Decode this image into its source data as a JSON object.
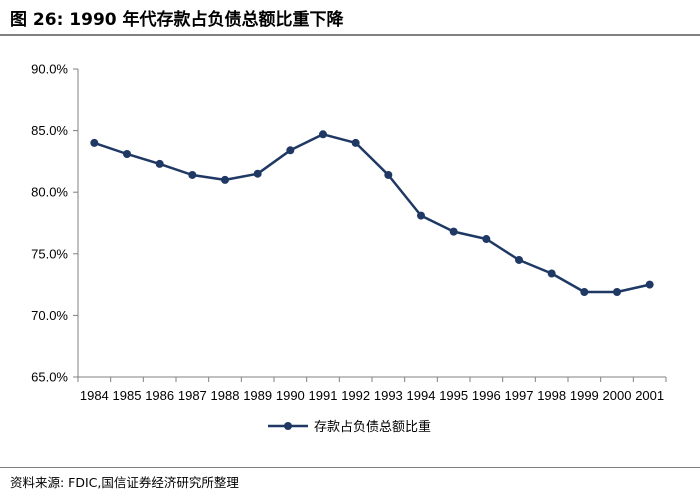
{
  "title": "图 26:  1990 年代存款占负债总额比重下降",
  "source": "资料来源:  FDIC,国信证券经济研究所整理",
  "chart_data": {
    "type": "line",
    "categories": [
      "1984",
      "1985",
      "1986",
      "1987",
      "1988",
      "1989",
      "1990",
      "1991",
      "1992",
      "1993",
      "1994",
      "1995",
      "1996",
      "1997",
      "1998",
      "1999",
      "2000",
      "2001"
    ],
    "series": [
      {
        "name": "存款占负债总额比重",
        "values": [
          84.0,
          83.1,
          82.3,
          81.4,
          81.0,
          81.5,
          83.4,
          84.7,
          84.0,
          81.4,
          78.1,
          76.8,
          76.2,
          74.5,
          73.4,
          71.9,
          71.9,
          72.5
        ],
        "color": "#1f3864"
      }
    ],
    "yticks": [
      "90.0%",
      "85.0%",
      "80.0%",
      "75.0%",
      "70.0%",
      "65.0%"
    ],
    "ylim": [
      65,
      90
    ],
    "grid": false,
    "legend": "bottom-center",
    "xlabel": "",
    "ylabel": ""
  }
}
